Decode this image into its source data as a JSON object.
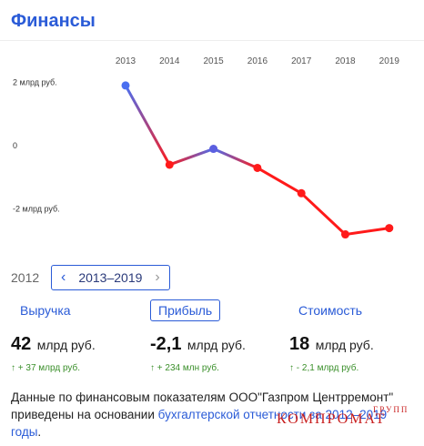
{
  "header": {
    "title": "Финансы"
  },
  "chart_data": {
    "type": "line",
    "x": [
      "2013",
      "2014",
      "2015",
      "2016",
      "2017",
      "2018",
      "2019"
    ],
    "series": [
      {
        "values": [
          2.1,
          -0.4,
          0.1,
          -0.5,
          -1.3,
          -2.6,
          -2.4
        ]
      }
    ],
    "y_tick_labels": [
      "2 млрд руб.",
      "0",
      "-2 млрд руб."
    ],
    "y_ticks": [
      2,
      0,
      -2
    ],
    "ylim": [
      -2.9,
      2.5
    ],
    "colors": {
      "positive": "#4a6ff0",
      "negative": "#ff1a1a"
    }
  },
  "range": {
    "start_label": "2012",
    "prev_icon": "chevron-left-icon",
    "value": "2013–2019",
    "next_icon": "chevron-right-icon"
  },
  "tabs": [
    {
      "label": "Выручка"
    },
    {
      "label": "Прибыль"
    },
    {
      "label": "Стоимость"
    }
  ],
  "metrics": [
    {
      "value": "42",
      "unit": "млрд руб.",
      "delta": "↑ + 37 млрд руб."
    },
    {
      "value": "-2,1",
      "unit": "млрд руб.",
      "delta": "↑ + 234 млн руб."
    },
    {
      "value": "18",
      "unit": "млрд руб.",
      "delta": "↑  - 2,1 млрд руб."
    }
  ],
  "footer": {
    "text_before": "Данные по финансовым показателям ООО\"Газпром Центрремонт\" приведены на основании ",
    "link": "бухгалтерской отчетности за 2012–2019 годы",
    "text_after": "."
  },
  "watermark": {
    "main": "КОМПРОМАТ",
    "small": "ГРУПП"
  }
}
